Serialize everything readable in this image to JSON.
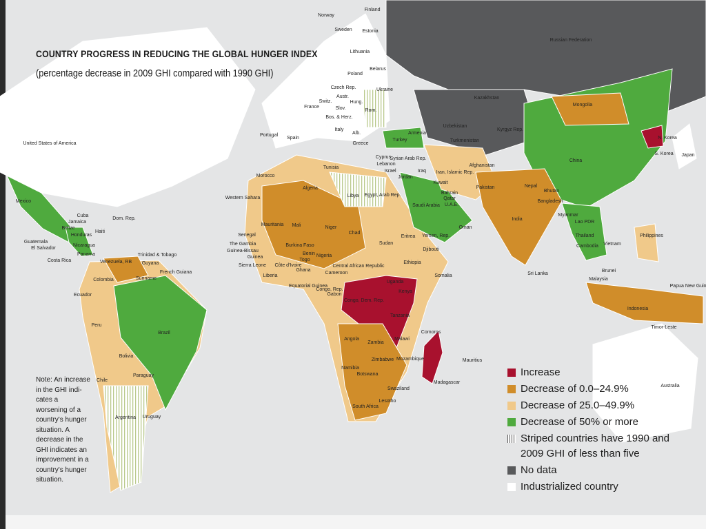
{
  "map": {
    "title": "COUNTRY PROGRESS IN REDUCING THE GLOBAL HUNGER INDEX",
    "subtitle": "(percentage decrease in 2009 GHI compared with 1990 GHI)",
    "note": "Note: An increase in the GHI indi-cates a worsening of a country's hunger situation. A decrease in the GHI indicates an improvement in a country's hunger situation.",
    "legend": [
      {
        "label": "Increase",
        "color": "#a8112e"
      },
      {
        "label": "Decrease of 0.0–24.9%",
        "color": "#d08d2a"
      },
      {
        "label": "Decrease of 25.0–49.9%",
        "color": "#f0c98a"
      },
      {
        "label": "Decrease of 50% or more",
        "color": "#4faa3e"
      },
      {
        "label": "Striped countries have 1990 and 2009 GHI of less than five"
      },
      {
        "label": "No data",
        "color": "#58595b"
      },
      {
        "label": "Industrialized country",
        "color": "#ffffff"
      }
    ],
    "labels": [
      "Finland",
      "Norway",
      "Sweden",
      "Estonia",
      "Lithuania",
      "Russian Federation",
      "Poland",
      "Belarus",
      "Czech Rep.",
      "Ukraine",
      "Austr.",
      "Switz.",
      "Hung.",
      "France",
      "Slov.",
      "Rom.",
      "Bos. & Herz.",
      "Kazakhstan",
      "Mongolia",
      "Italy",
      "Alb.",
      "Armenia",
      "Portugal",
      "Spain",
      "Turkey",
      "Uzbekistan",
      "Kyrgyz Rep.",
      "Turkmenistan",
      "N. Korea",
      "United States of America",
      "Greece",
      "Cyprus",
      "Lebanon",
      "Syrian Arab Rep.",
      "Israel",
      "Iraq",
      "Iran, Islamic Rep.",
      "Afghanistan",
      "Jordan",
      "Kuwait",
      "S. Korea",
      "Japan",
      "China",
      "Tunisia",
      "Morocco",
      "Algeria",
      "Libya",
      "Egypt, Arab Rep.",
      "Western Sahara",
      "Bahrain",
      "Qatar",
      "U.A.E.",
      "Pakistan",
      "Nepal",
      "Bhutan",
      "Bangladesh",
      "Saudi Arabia",
      "Mexico",
      "Mauritania",
      "Mali",
      "Niger",
      "Chad",
      "Oman",
      "Myanmar",
      "Lao PDR",
      "India",
      "Cuba",
      "Jamaica",
      "Dom. Rep.",
      "Haiti",
      "Belize",
      "Honduras",
      "Senegal",
      "Yemen, Rep.",
      "Philippines",
      "Sudan",
      "Eritrea",
      "Guatemala",
      "Nicaragua",
      "El Salvador",
      "The Gambia",
      "Guinea-Bissau",
      "Thailand",
      "Vietnam",
      "Cambodia",
      "Burkina Faso",
      "Benin",
      "Nigeria",
      "Djibouti",
      "Guinea",
      "Panama",
      "Trinidad & Tobago",
      "Togo",
      "Costa Rica",
      "Venezuela, RB",
      "Guyana",
      "Central African Republic",
      "Ethiopia",
      "Sierra Leone",
      "Côte d'Ivoire",
      "Ghana",
      "Cameroon",
      "Sri Lanka",
      "Brunei",
      "Suriname",
      "French Guiana",
      "Liberia",
      "Colombia",
      "Somalia",
      "Malaysia",
      "Papua New Guinea",
      "Equatorial Guinea",
      "Congo, Rep.",
      "Uganda",
      "Gabon",
      "Kenya",
      "Ecuador",
      "Congo, Dem. Rep.",
      "Indonesia",
      "Tanzania",
      "Timor-Leste",
      "Peru",
      "Brazil",
      "Comoros",
      "Angola",
      "Zambia",
      "Malawi",
      "Bolivia",
      "Mozambique",
      "Zimbabwe",
      "Mauritius",
      "Namibia",
      "Botswana",
      "Paraguay",
      "Chile",
      "Madagascar",
      "Swaziland",
      "Australia",
      "Lesotho",
      "South Africa",
      "Argentina",
      "Uruguay"
    ]
  }
}
